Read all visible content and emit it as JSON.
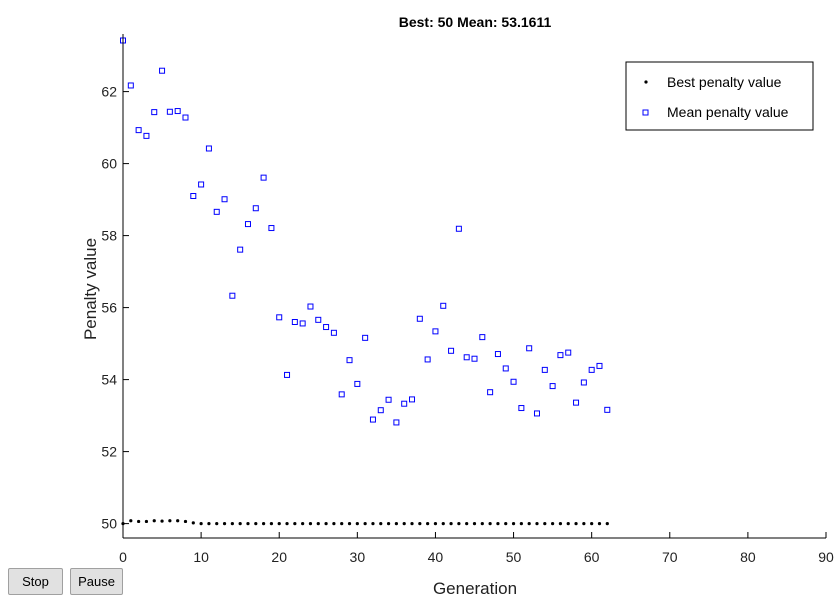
{
  "controls": {
    "stop_label": "Stop",
    "pause_label": "Pause"
  },
  "chart_data": {
    "type": "scatter",
    "title": "Best: 50 Mean: 53.1611",
    "xlabel": "Generation",
    "ylabel": "Penalty value",
    "xlim": [
      0,
      90
    ],
    "ylim": [
      49.6,
      63.6
    ],
    "xticks": [
      0,
      10,
      20,
      30,
      40,
      50,
      60,
      70,
      80,
      90
    ],
    "yticks": [
      50,
      52,
      54,
      56,
      58,
      60,
      62
    ],
    "grid": false,
    "legend_position": "top-right",
    "series": [
      {
        "name": "Best penalty value",
        "marker": "dot",
        "color": "#000000",
        "x": [
          0,
          1,
          2,
          3,
          4,
          5,
          6,
          7,
          8,
          9,
          10,
          11,
          12,
          13,
          14,
          15,
          16,
          17,
          18,
          19,
          20,
          21,
          22,
          23,
          24,
          25,
          26,
          27,
          28,
          29,
          30,
          31,
          32,
          33,
          34,
          35,
          36,
          37,
          38,
          39,
          40,
          41,
          42,
          43,
          44,
          45,
          46,
          47,
          48,
          49,
          50,
          51,
          52,
          53,
          54,
          55,
          56,
          57,
          58,
          59,
          60,
          61,
          62
        ],
        "y": [
          50.0,
          50.08,
          50.06,
          50.06,
          50.08,
          50.07,
          50.08,
          50.08,
          50.06,
          50.02,
          50.0,
          50.0,
          50.0,
          50.0,
          50.0,
          50.0,
          50.0,
          50.0,
          50.0,
          50.0,
          50.0,
          50.0,
          50.0,
          50.0,
          50.0,
          50.0,
          50.0,
          50.0,
          50.0,
          50.0,
          50.0,
          50.0,
          50.0,
          50.0,
          50.0,
          50.0,
          50.0,
          50.0,
          50.0,
          50.0,
          50.0,
          50.0,
          50.0,
          50.0,
          50.0,
          50.0,
          50.0,
          50.0,
          50.0,
          50.0,
          50.0,
          50.0,
          50.0,
          50.0,
          50.0,
          50.0,
          50.0,
          50.0,
          50.0,
          50.0,
          50.0,
          50.0,
          50.0
        ]
      },
      {
        "name": "Mean penalty value",
        "marker": "square",
        "color": "#0000ff",
        "x": [
          0,
          1,
          2,
          3,
          4,
          5,
          6,
          7,
          8,
          9,
          10,
          11,
          12,
          13,
          14,
          15,
          16,
          17,
          18,
          19,
          20,
          21,
          22,
          23,
          24,
          25,
          26,
          27,
          28,
          29,
          30,
          31,
          32,
          33,
          34,
          35,
          36,
          37,
          38,
          39,
          40,
          41,
          42,
          43,
          44,
          45,
          46,
          47,
          48,
          49,
          50,
          51,
          52,
          53,
          54,
          55,
          56,
          57,
          58,
          59,
          60,
          61,
          62
        ],
        "y": [
          63.42,
          62.17,
          60.93,
          60.77,
          61.43,
          62.58,
          61.44,
          61.46,
          61.28,
          59.1,
          59.42,
          60.42,
          58.66,
          59.01,
          56.33,
          57.61,
          58.32,
          58.76,
          59.61,
          58.21,
          55.73,
          54.13,
          55.6,
          55.56,
          56.03,
          55.66,
          55.46,
          55.3,
          53.59,
          54.54,
          53.88,
          55.16,
          52.89,
          53.15,
          53.44,
          52.81,
          53.33,
          53.45,
          55.69,
          54.56,
          55.34,
          56.05,
          54.8,
          58.19,
          54.62,
          54.58,
          55.18,
          53.65,
          54.71,
          54.31,
          53.94,
          53.21,
          54.87,
          53.06,
          54.27,
          53.82,
          54.68,
          54.75,
          53.36,
          53.92,
          54.27,
          54.38,
          53.16
        ]
      }
    ]
  }
}
